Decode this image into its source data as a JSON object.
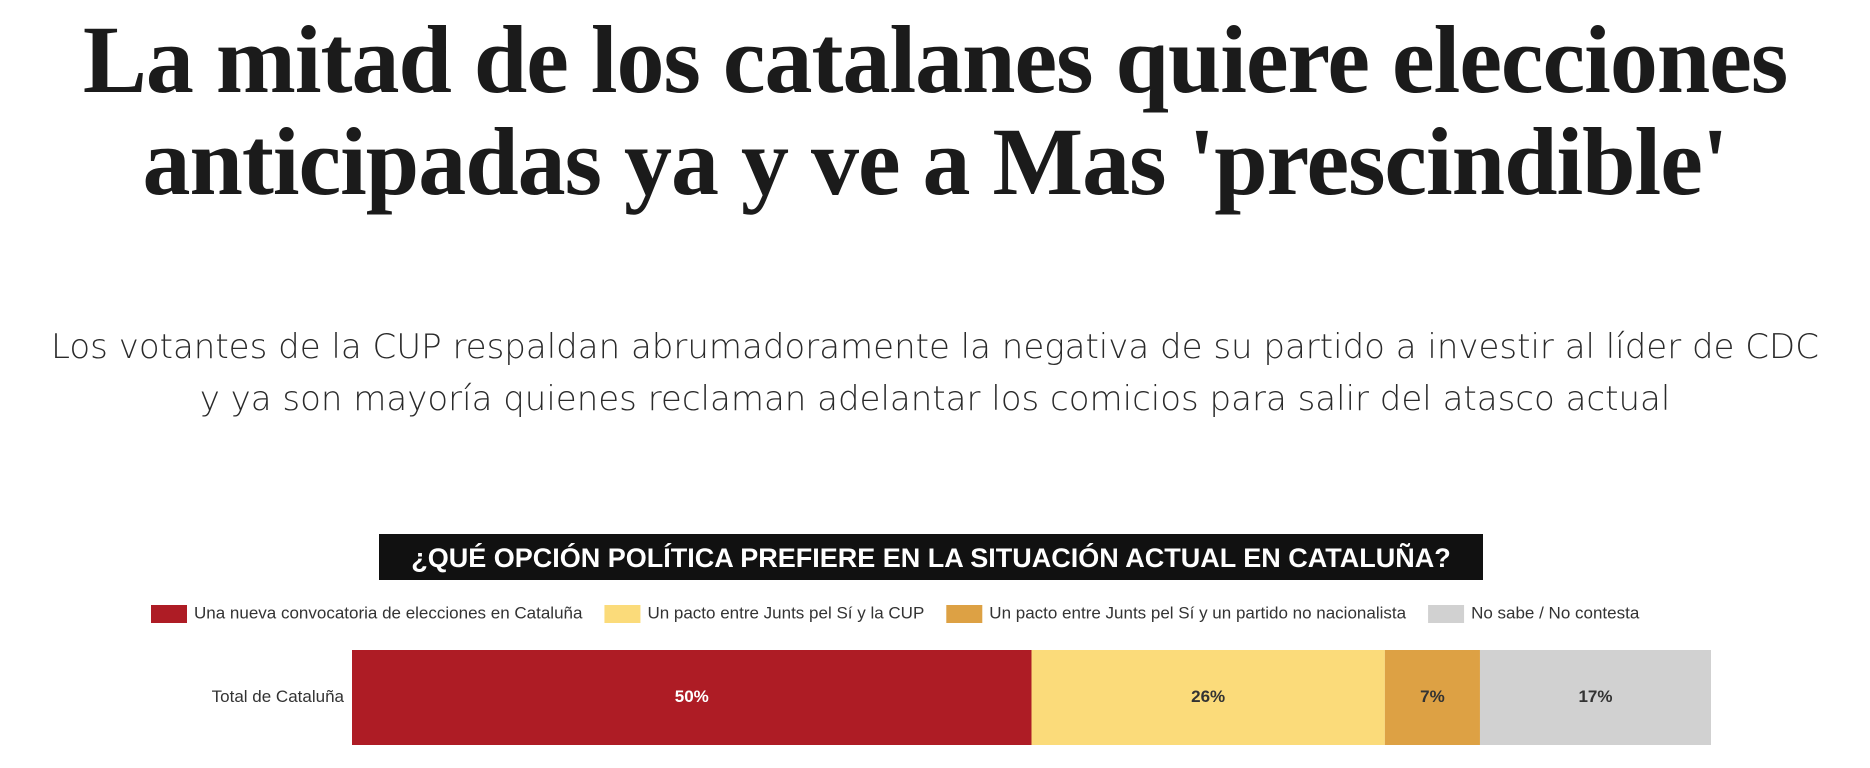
{
  "headline": [
    "La mitad de los catalanes quiere elecciones",
    "anticipadas ya y ve a Mas 'prescindible'"
  ],
  "subtitle": [
    "Los votantes de la CUP respaldan abrumadoramente la negativa de su partido a investir al líder de CDC",
    "y ya son mayoría quienes reclaman adelantar los comicios para salir del atasco actual"
  ],
  "chart_data": {
    "type": "bar",
    "orientation": "horizontal",
    "stacked": true,
    "title": "¿QUÉ OPCIÓN POLÍTICA PREFIERE EN LA SITUACIÓN ACTUAL EN CATALUÑA?",
    "categories": [
      "Total de Cataluña"
    ],
    "xlim": [
      0,
      100
    ],
    "series": [
      {
        "name": "Una nueva convocatoria de elecciones en Cataluña",
        "color": "#ae1c25",
        "values": [
          50
        ],
        "value_labels": [
          "50%"
        ]
      },
      {
        "name": "Un pacto entre Junts pel Sí y la CUP",
        "color": "#fbdb7a",
        "values": [
          26
        ],
        "value_labels": [
          "26%"
        ]
      },
      {
        "name": "Un pacto entre Junts pel Sí y un partido no nacionalista",
        "color": "#dda144",
        "values": [
          7
        ],
        "value_labels": [
          "7%"
        ]
      },
      {
        "name": "No sabe / No contesta",
        "color": "#d1d1d1",
        "values": [
          17
        ],
        "value_labels": [
          "17%"
        ]
      }
    ]
  }
}
